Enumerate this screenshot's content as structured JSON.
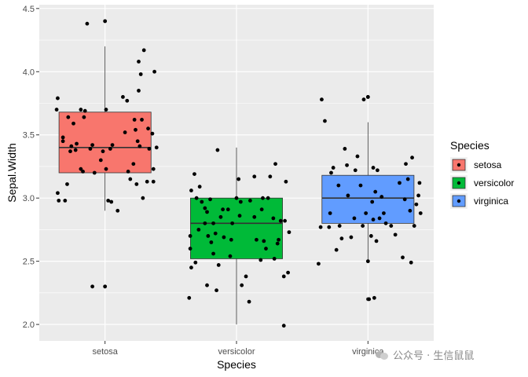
{
  "chart_data": {
    "type": "box",
    "title": "",
    "xlabel": "Species",
    "ylabel": "Sepal.Width",
    "categories": [
      "setosa",
      "versicolor",
      "virginica"
    ],
    "ylim": [
      1.87,
      4.53
    ],
    "yticks": [
      "2.0",
      "2.5",
      "3.0",
      "3.5",
      "4.0",
      "4.5"
    ],
    "ytick_values": [
      2.0,
      2.5,
      3.0,
      3.5,
      4.0,
      4.5
    ],
    "grid": true,
    "legend": {
      "title": "Species",
      "position": "right"
    },
    "colors": {
      "setosa": "#F8766D",
      "versicolor": "#00BA38",
      "virginica": "#619CFF",
      "panel": "#EBEBEB",
      "grid": "#FFFFFF",
      "point": "#000000"
    },
    "boxes": [
      {
        "name": "setosa",
        "q1": 3.2,
        "median": 3.4,
        "q3": 3.68,
        "whisker_low": 2.9,
        "whisker_high": 4.2,
        "outliers": [
          2.3,
          4.4
        ]
      },
      {
        "name": "versicolor",
        "q1": 2.52,
        "median": 2.8,
        "q3": 3.0,
        "whisker_low": 2.0,
        "whisker_high": 3.4,
        "outliers": []
      },
      {
        "name": "virginica",
        "q1": 2.8,
        "median": 3.0,
        "q3": 3.18,
        "whisker_low": 2.5,
        "whisker_high": 3.6,
        "outliers": [
          2.2,
          2.2,
          3.8,
          3.8
        ]
      }
    ],
    "points": [
      [
        [
          -0.46,
          3.7
        ],
        [
          -0.45,
          3.79
        ],
        [
          -0.45,
          3.04
        ],
        [
          -0.44,
          2.98
        ],
        [
          -0.4,
          3.48
        ],
        [
          -0.4,
          3.45
        ],
        [
          -0.38,
          2.98
        ],
        [
          -0.36,
          3.11
        ],
        [
          -0.35,
          3.64
        ],
        [
          -0.33,
          3.37
        ],
        [
          -0.32,
          3.41
        ],
        [
          -0.3,
          3.59
        ],
        [
          -0.28,
          3.38
        ],
        [
          -0.27,
          3.43
        ],
        [
          -0.23,
          3.7
        ],
        [
          -0.23,
          3.23
        ],
        [
          -0.21,
          3.21
        ],
        [
          -0.2,
          3.64
        ],
        [
          -0.19,
          3.69
        ],
        [
          -0.17,
          4.38
        ],
        [
          -0.14,
          3.39
        ],
        [
          -0.12,
          2.3
        ],
        [
          -0.12,
          3.42
        ],
        [
          -0.1,
          3.2
        ],
        [
          -0.04,
          3.3
        ],
        [
          -0.02,
          3.37
        ],
        [
          0.0,
          4.4
        ],
        [
          0.0,
          2.3
        ],
        [
          0.01,
          3.23
        ],
        [
          0.01,
          3.7
        ],
        [
          0.03,
          2.98
        ],
        [
          0.05,
          3.39
        ],
        [
          0.06,
          2.97
        ],
        [
          0.07,
          3.42
        ],
        [
          0.12,
          2.9
        ],
        [
          0.17,
          3.8
        ],
        [
          0.19,
          3.52
        ],
        [
          0.21,
          3.77
        ],
        [
          0.22,
          3.21
        ],
        [
          0.24,
          3.15
        ],
        [
          0.27,
          3.27
        ],
        [
          0.28,
          3.62
        ],
        [
          0.29,
          3.54
        ],
        [
          0.3,
          3.11
        ],
        [
          0.31,
          3.45
        ],
        [
          0.32,
          4.08
        ],
        [
          0.32,
          3.85
        ],
        [
          0.33,
          3.41
        ],
        [
          0.34,
          3.98
        ],
        [
          0.35,
          3.62
        ],
        [
          0.36,
          3.0
        ],
        [
          0.37,
          4.17
        ],
        [
          0.4,
          3.13
        ],
        [
          0.41,
          3.55
        ],
        [
          0.42,
          3.39
        ],
        [
          0.45,
          3.51
        ],
        [
          0.46,
          3.23
        ],
        [
          0.46,
          3.13
        ],
        [
          0.47,
          4.0
        ],
        [
          0.49,
          3.4
        ]
      ],
      [
        [
          -0.45,
          2.21
        ],
        [
          -0.44,
          2.7
        ],
        [
          -0.44,
          2.6
        ],
        [
          -0.43,
          2.45
        ],
        [
          -0.43,
          3.06
        ],
        [
          -0.4,
          3.19
        ],
        [
          -0.39,
          2.49
        ],
        [
          -0.38,
          3.0
        ],
        [
          -0.36,
          2.75
        ],
        [
          -0.35,
          3.09
        ],
        [
          -0.33,
          2.97
        ],
        [
          -0.3,
          2.8
        ],
        [
          -0.3,
          2.92
        ],
        [
          -0.28,
          2.89
        ],
        [
          -0.28,
          2.31
        ],
        [
          -0.27,
          2.7
        ],
        [
          -0.25,
          2.99
        ],
        [
          -0.24,
          2.65
        ],
        [
          -0.22,
          2.8
        ],
        [
          -0.22,
          2.56
        ],
        [
          -0.2,
          2.72
        ],
        [
          -0.19,
          2.27
        ],
        [
          -0.18,
          3.38
        ],
        [
          -0.17,
          2.47
        ],
        [
          -0.15,
          2.85
        ],
        [
          -0.13,
          2.91
        ],
        [
          -0.12,
          2.69
        ],
        [
          -0.08,
          2.91
        ],
        [
          -0.06,
          2.54
        ],
        [
          -0.05,
          2.67
        ],
        [
          -0.04,
          2.8
        ],
        [
          0.0,
          3.0
        ],
        [
          0.02,
          3.15
        ],
        [
          0.03,
          2.86
        ],
        [
          0.04,
          2.97
        ],
        [
          0.05,
          2.31
        ],
        [
          0.09,
          2.38
        ],
        [
          0.12,
          2.18
        ],
        [
          0.13,
          2.98
        ],
        [
          0.17,
          2.85
        ],
        [
          0.17,
          3.17
        ],
        [
          0.19,
          2.67
        ],
        [
          0.23,
          2.51
        ],
        [
          0.24,
          2.91
        ],
        [
          0.25,
          3.0
        ],
        [
          0.26,
          2.66
        ],
        [
          0.28,
          2.6
        ],
        [
          0.3,
          3.0
        ],
        [
          0.32,
          3.17
        ],
        [
          0.35,
          2.84
        ],
        [
          0.36,
          2.52
        ],
        [
          0.37,
          3.27
        ],
        [
          0.39,
          2.64
        ],
        [
          0.4,
          2.67
        ],
        [
          0.42,
          2.82
        ],
        [
          0.45,
          1.99
        ],
        [
          0.45,
          2.38
        ],
        [
          0.46,
          2.82
        ],
        [
          0.47,
          3.13
        ],
        [
          0.49,
          2.41
        ],
        [
          0.5,
          2.73
        ]
      ],
      [
        [
          -0.47,
          2.48
        ],
        [
          -0.45,
          2.77
        ],
        [
          -0.44,
          3.78
        ],
        [
          -0.41,
          3.61
        ],
        [
          -0.37,
          2.77
        ],
        [
          -0.36,
          2.88
        ],
        [
          -0.35,
          3.2
        ],
        [
          -0.33,
          3.24
        ],
        [
          -0.3,
          2.59
        ],
        [
          -0.28,
          3.1
        ],
        [
          -0.27,
          2.78
        ],
        [
          -0.25,
          2.68
        ],
        [
          -0.22,
          3.39
        ],
        [
          -0.2,
          3.26
        ],
        [
          -0.19,
          3.02
        ],
        [
          -0.16,
          2.69
        ],
        [
          -0.13,
          2.84
        ],
        [
          -0.12,
          3.22
        ],
        [
          -0.1,
          3.33
        ],
        [
          -0.07,
          3.1
        ],
        [
          -0.05,
          2.78
        ],
        [
          -0.04,
          3.78
        ],
        [
          -0.02,
          2.88
        ],
        [
          0.0,
          2.5
        ],
        [
          0.0,
          3.8
        ],
        [
          0.01,
          2.2
        ],
        [
          0.03,
          2.7
        ],
        [
          0.04,
          2.97
        ],
        [
          0.05,
          2.83
        ],
        [
          0.05,
          3.24
        ],
        [
          0.06,
          2.21
        ],
        [
          0.07,
          3.05
        ],
        [
          0.08,
          2.66
        ],
        [
          0.09,
          3.22
        ],
        [
          0.11,
          2.84
        ],
        [
          0.13,
          3.01
        ],
        [
          0.15,
          2.88
        ],
        [
          0.17,
          2.8
        ],
        [
          0.22,
          2.78
        ],
        [
          0.26,
          2.71
        ],
        [
          0.3,
          3.12
        ],
        [
          0.33,
          2.53
        ],
        [
          0.35,
          2.99
        ],
        [
          0.36,
          3.27
        ],
        [
          0.38,
          3.15
        ],
        [
          0.4,
          2.9
        ],
        [
          0.41,
          2.49
        ],
        [
          0.42,
          3.32
        ],
        [
          0.44,
          2.78
        ],
        [
          0.46,
          2.95
        ],
        [
          0.48,
          3.02
        ],
        [
          0.49,
          3.12
        ],
        [
          0.5,
          2.88
        ]
      ]
    ]
  },
  "watermark": {
    "text": "公众号 · 生信鼠鼠"
  }
}
